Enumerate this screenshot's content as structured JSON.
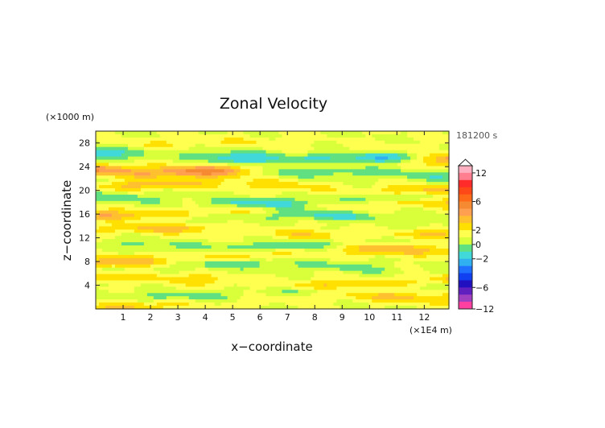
{
  "chart_data": {
    "type": "heatmap",
    "title": "Zonal Velocity",
    "xlabel": "x−coordinate",
    "ylabel": "z−coordinate",
    "x_unit": "(×1E4 m)",
    "y_unit": "(×1000 m)",
    "time_label": "181200 s",
    "xlim": [
      0,
      12.9
    ],
    "ylim": [
      0,
      30
    ],
    "x_ticks": [
      1,
      2,
      3,
      4,
      5,
      6,
      7,
      8,
      9,
      10,
      11,
      12
    ],
    "y_ticks": [
      4,
      8,
      12,
      16,
      20,
      24,
      28
    ],
    "colorbar": {
      "ticks": [
        "12",
        "6",
        "2",
        "0",
        "−2",
        "−6",
        "−12"
      ],
      "levels": [
        14,
        12,
        10,
        8,
        6,
        5,
        4,
        3,
        2,
        1,
        0,
        -1,
        -2,
        -3,
        -4,
        -5,
        -6,
        -8,
        -10,
        -12,
        -14
      ],
      "colors": [
        "#ffb0c0",
        "#ff7f90",
        "#ff2a2a",
        "#ff4818",
        "#ff6a18",
        "#f58a32",
        "#ffa050",
        "#ffc030",
        "#ffe000",
        "#ffff50",
        "#d8ff3a",
        "#60e080",
        "#40d8d8",
        "#30b0f0",
        "#2070ff",
        "#1040f0",
        "#2010c0",
        "#6020c0",
        "#a040c0",
        "#ff40a0"
      ]
    },
    "bands": [
      {
        "z": 27.2,
        "v": 1.2,
        "amp": 1.0
      },
      {
        "z": 25.8,
        "v": -4.5,
        "amp": 1.1
      },
      {
        "z": 24.0,
        "v": 5.5,
        "amp": 1.1
      },
      {
        "z": 22.3,
        "v": -3.0,
        "amp": 0.9
      },
      {
        "z": 20.5,
        "v": 3.0,
        "amp": 0.9
      },
      {
        "z": 18.6,
        "v": -2.8,
        "amp": 0.9
      },
      {
        "z": 16.8,
        "v": 3.2,
        "amp": 0.9
      },
      {
        "z": 15.0,
        "v": -2.5,
        "amp": 0.9
      },
      {
        "z": 13.0,
        "v": 3.0,
        "amp": 0.9
      },
      {
        "z": 11.3,
        "v": -2.2,
        "amp": 0.8
      },
      {
        "z": 9.0,
        "v": 3.0,
        "amp": 1.0
      },
      {
        "z": 6.8,
        "v": -2.0,
        "amp": 0.8
      },
      {
        "z": 4.8,
        "v": 2.8,
        "amp": 0.9
      },
      {
        "z": 3.0,
        "v": -1.8,
        "amp": 0.8
      },
      {
        "z": 1.2,
        "v": 2.5,
        "amp": 0.9
      }
    ]
  }
}
